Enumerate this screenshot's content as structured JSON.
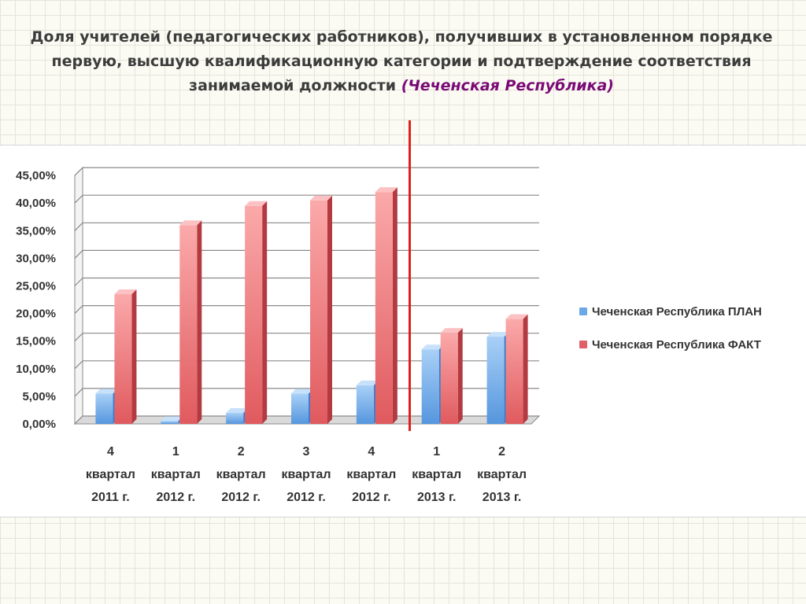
{
  "title": {
    "main": "Доля учителей (педагогических работников), получивших в установленном порядке первую, высшую квалификационную категории и подтверждение соответствия занимаемой должности",
    "region": "(Чеченская Республика)"
  },
  "colors": {
    "plan": "#6aa8e8",
    "fact": "#e06068",
    "divider": "#e21e1e",
    "title_accent": "#7a0a75"
  },
  "legend": {
    "plan_label": "Чеченская Республика ПЛАН",
    "fact_label": "Чеченская Республика ФАКТ"
  },
  "chart_data": {
    "type": "bar",
    "categories": [
      [
        "4",
        "квартал",
        "2011 г."
      ],
      [
        "1",
        "квартал",
        "2012 г."
      ],
      [
        "2",
        "квартал",
        "2012 г."
      ],
      [
        "3",
        "квартал",
        "2012 г."
      ],
      [
        "4",
        "квартал",
        "2012 г."
      ],
      [
        "1",
        "квартал",
        "2013 г."
      ],
      [
        "2",
        "квартал",
        "2013 г."
      ]
    ],
    "series": [
      {
        "name": "Чеченская Республика ПЛАН",
        "values": [
          5.5,
          0.5,
          2.0,
          5.5,
          7.0,
          13.5,
          15.8
        ]
      },
      {
        "name": "Чеченская Республика ФАКТ",
        "values": [
          23.5,
          36.0,
          39.5,
          40.5,
          42.0,
          16.5,
          19.0
        ]
      }
    ],
    "y_ticks": [
      "0,00%",
      "5,00%",
      "10,00%",
      "15,00%",
      "20,00%",
      "25,00%",
      "30,00%",
      "35,00%",
      "40,00%",
      "45,00%"
    ],
    "ylim": [
      0,
      45
    ],
    "grid": true,
    "legend_position": "right",
    "title": "",
    "xlabel": "",
    "ylabel": ""
  }
}
